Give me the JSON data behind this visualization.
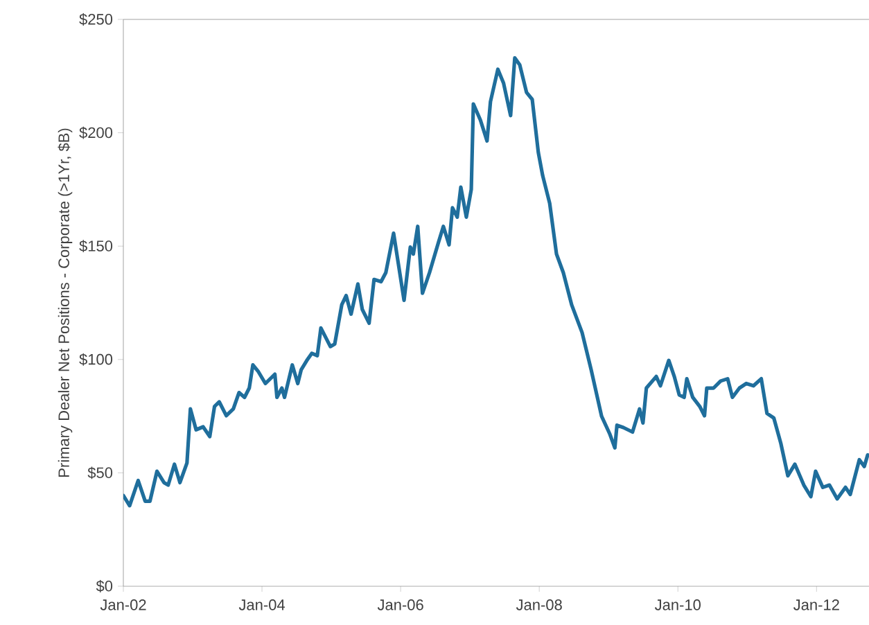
{
  "chart_data": {
    "type": "line",
    "ylabel": "Primary Dealer Net Positions - Corporate (>1Yr, $B)",
    "x": [
      "2002-01-01",
      "2002-02-03",
      "2002-03-20",
      "2002-04-26",
      "2002-05-21",
      "2002-06-27",
      "2002-08-03",
      "2002-08-25",
      "2002-09-27",
      "2002-10-26",
      "2002-12-02",
      "2002-12-20",
      "2003-01-19",
      "2003-02-25",
      "2003-04-01",
      "2003-04-26",
      "2003-05-21",
      "2003-06-27",
      "2003-08-03",
      "2003-09-02",
      "2003-10-01",
      "2003-10-26",
      "2003-11-14",
      "2003-12-13",
      "2004-01-19",
      "2004-03-09",
      "2004-03-20",
      "2004-04-15",
      "2004-04-29",
      "2004-06-09",
      "2004-07-08",
      "2004-07-26",
      "2004-08-25",
      "2004-09-20",
      "2004-10-19",
      "2004-11-07",
      "2004-12-27",
      "2005-01-19",
      "2005-02-25",
      "2005-03-20",
      "2005-04-15",
      "2005-05-21",
      "2005-06-13",
      "2005-07-19",
      "2005-08-14",
      "2005-09-20",
      "2005-10-15",
      "2005-11-25",
      "2006-01-19",
      "2006-02-21",
      "2006-03-09",
      "2006-04-01",
      "2006-04-26",
      "2006-06-02",
      "2006-07-19",
      "2006-08-14",
      "2006-09-13",
      "2006-10-01",
      "2006-10-26",
      "2006-11-14",
      "2006-12-13",
      "2007-01-08",
      "2007-01-19",
      "2007-02-25",
      "2007-04-01",
      "2007-04-19",
      "2007-05-28",
      "2007-06-27",
      "2007-08-03",
      "2007-08-25",
      "2007-09-20",
      "2007-10-26",
      "2007-11-25",
      "2007-12-27",
      "2008-01-19",
      "2008-02-25",
      "2008-04-01",
      "2008-05-07",
      "2008-06-20",
      "2008-08-14",
      "2008-10-01",
      "2008-11-25",
      "2009-01-08",
      "2009-02-03",
      "2009-02-14",
      "2009-03-20",
      "2009-05-07",
      "2009-06-13",
      "2009-07-01",
      "2009-07-19",
      "2009-09-09",
      "2009-10-01",
      "2009-11-14",
      "2009-12-13",
      "2010-01-08",
      "2010-02-03",
      "2010-02-17",
      "2010-03-20",
      "2010-04-26",
      "2010-05-21",
      "2010-06-02",
      "2010-07-08",
      "2010-08-14",
      "2010-09-20",
      "2010-10-15",
      "2010-11-21",
      "2010-12-27",
      "2011-02-03",
      "2011-03-16",
      "2011-04-15",
      "2011-05-21",
      "2011-06-27",
      "2011-08-03",
      "2011-09-09",
      "2011-10-26",
      "2011-12-02",
      "2011-12-27",
      "2012-02-03",
      "2012-03-09",
      "2012-04-19",
      "2012-06-02",
      "2012-06-27",
      "2012-08-14",
      "2012-09-09",
      "2012-09-27"
    ],
    "series": [
      {
        "color": "#1f6e9c",
        "values": [
          40,
          35.5,
          46.6,
          37.5,
          37.5,
          50.7,
          45.7,
          44.6,
          53.8,
          45.7,
          54.4,
          78.2,
          69,
          70.3,
          66,
          79.3,
          81.3,
          75.2,
          78.2,
          85.4,
          83.3,
          87.4,
          97.6,
          94.6,
          89.4,
          93.5,
          83.3,
          87.4,
          83.3,
          97.6,
          89.4,
          95.5,
          99.6,
          102.7,
          101.7,
          113.9,
          105.7,
          106.8,
          124.1,
          128.2,
          120,
          133.3,
          122.1,
          116,
          135.3,
          134.3,
          138.3,
          155.7,
          126.1,
          149.6,
          146.5,
          158.7,
          129.2,
          138.3,
          151.6,
          158.7,
          150.6,
          166.9,
          162.8,
          176,
          162.8,
          175,
          212.7,
          205.6,
          196.4,
          213.7,
          228,
          221.9,
          207.6,
          233,
          230,
          217.8,
          214.7,
          191.3,
          181.1,
          168.9,
          146.5,
          138.3,
          124.1,
          111.9,
          95.5,
          75,
          67,
          61,
          71,
          70,
          68,
          78.2,
          72,
          87.4,
          92.5,
          88.4,
          99.6,
          92.5,
          84.4,
          83.3,
          91.5,
          83.3,
          79.3,
          75.2,
          87.4,
          87.4,
          90.5,
          91.5,
          83.3,
          87.4,
          89.4,
          88.4,
          91.5,
          76.2,
          74.2,
          63,
          48.7,
          53.8,
          44.6,
          39.5,
          50.7,
          43.6,
          44.6,
          38.5,
          43.6,
          40.5,
          55.8,
          52.8,
          57.9
        ]
      }
    ],
    "xlim": [
      "2002-01-01",
      "2012-10-04"
    ],
    "ylim": [
      0,
      250
    ],
    "xticks": [
      {
        "value": "2002-01-01",
        "label": "Jan-02"
      },
      {
        "value": "2004-01-01",
        "label": "Jan-04"
      },
      {
        "value": "2006-01-01",
        "label": "Jan-06"
      },
      {
        "value": "2008-01-01",
        "label": "Jan-08"
      },
      {
        "value": "2010-01-01",
        "label": "Jan-10"
      },
      {
        "value": "2012-01-01",
        "label": "Jan-12"
      }
    ],
    "yticks": [
      {
        "value": 0,
        "label": "$0"
      },
      {
        "value": 50,
        "label": "$50"
      },
      {
        "value": 100,
        "label": "$100"
      },
      {
        "value": 150,
        "label": "$150"
      },
      {
        "value": 200,
        "label": "$200"
      },
      {
        "value": 250,
        "label": "$250"
      }
    ],
    "grid": false,
    "marker": "none",
    "line_style": "solid"
  }
}
